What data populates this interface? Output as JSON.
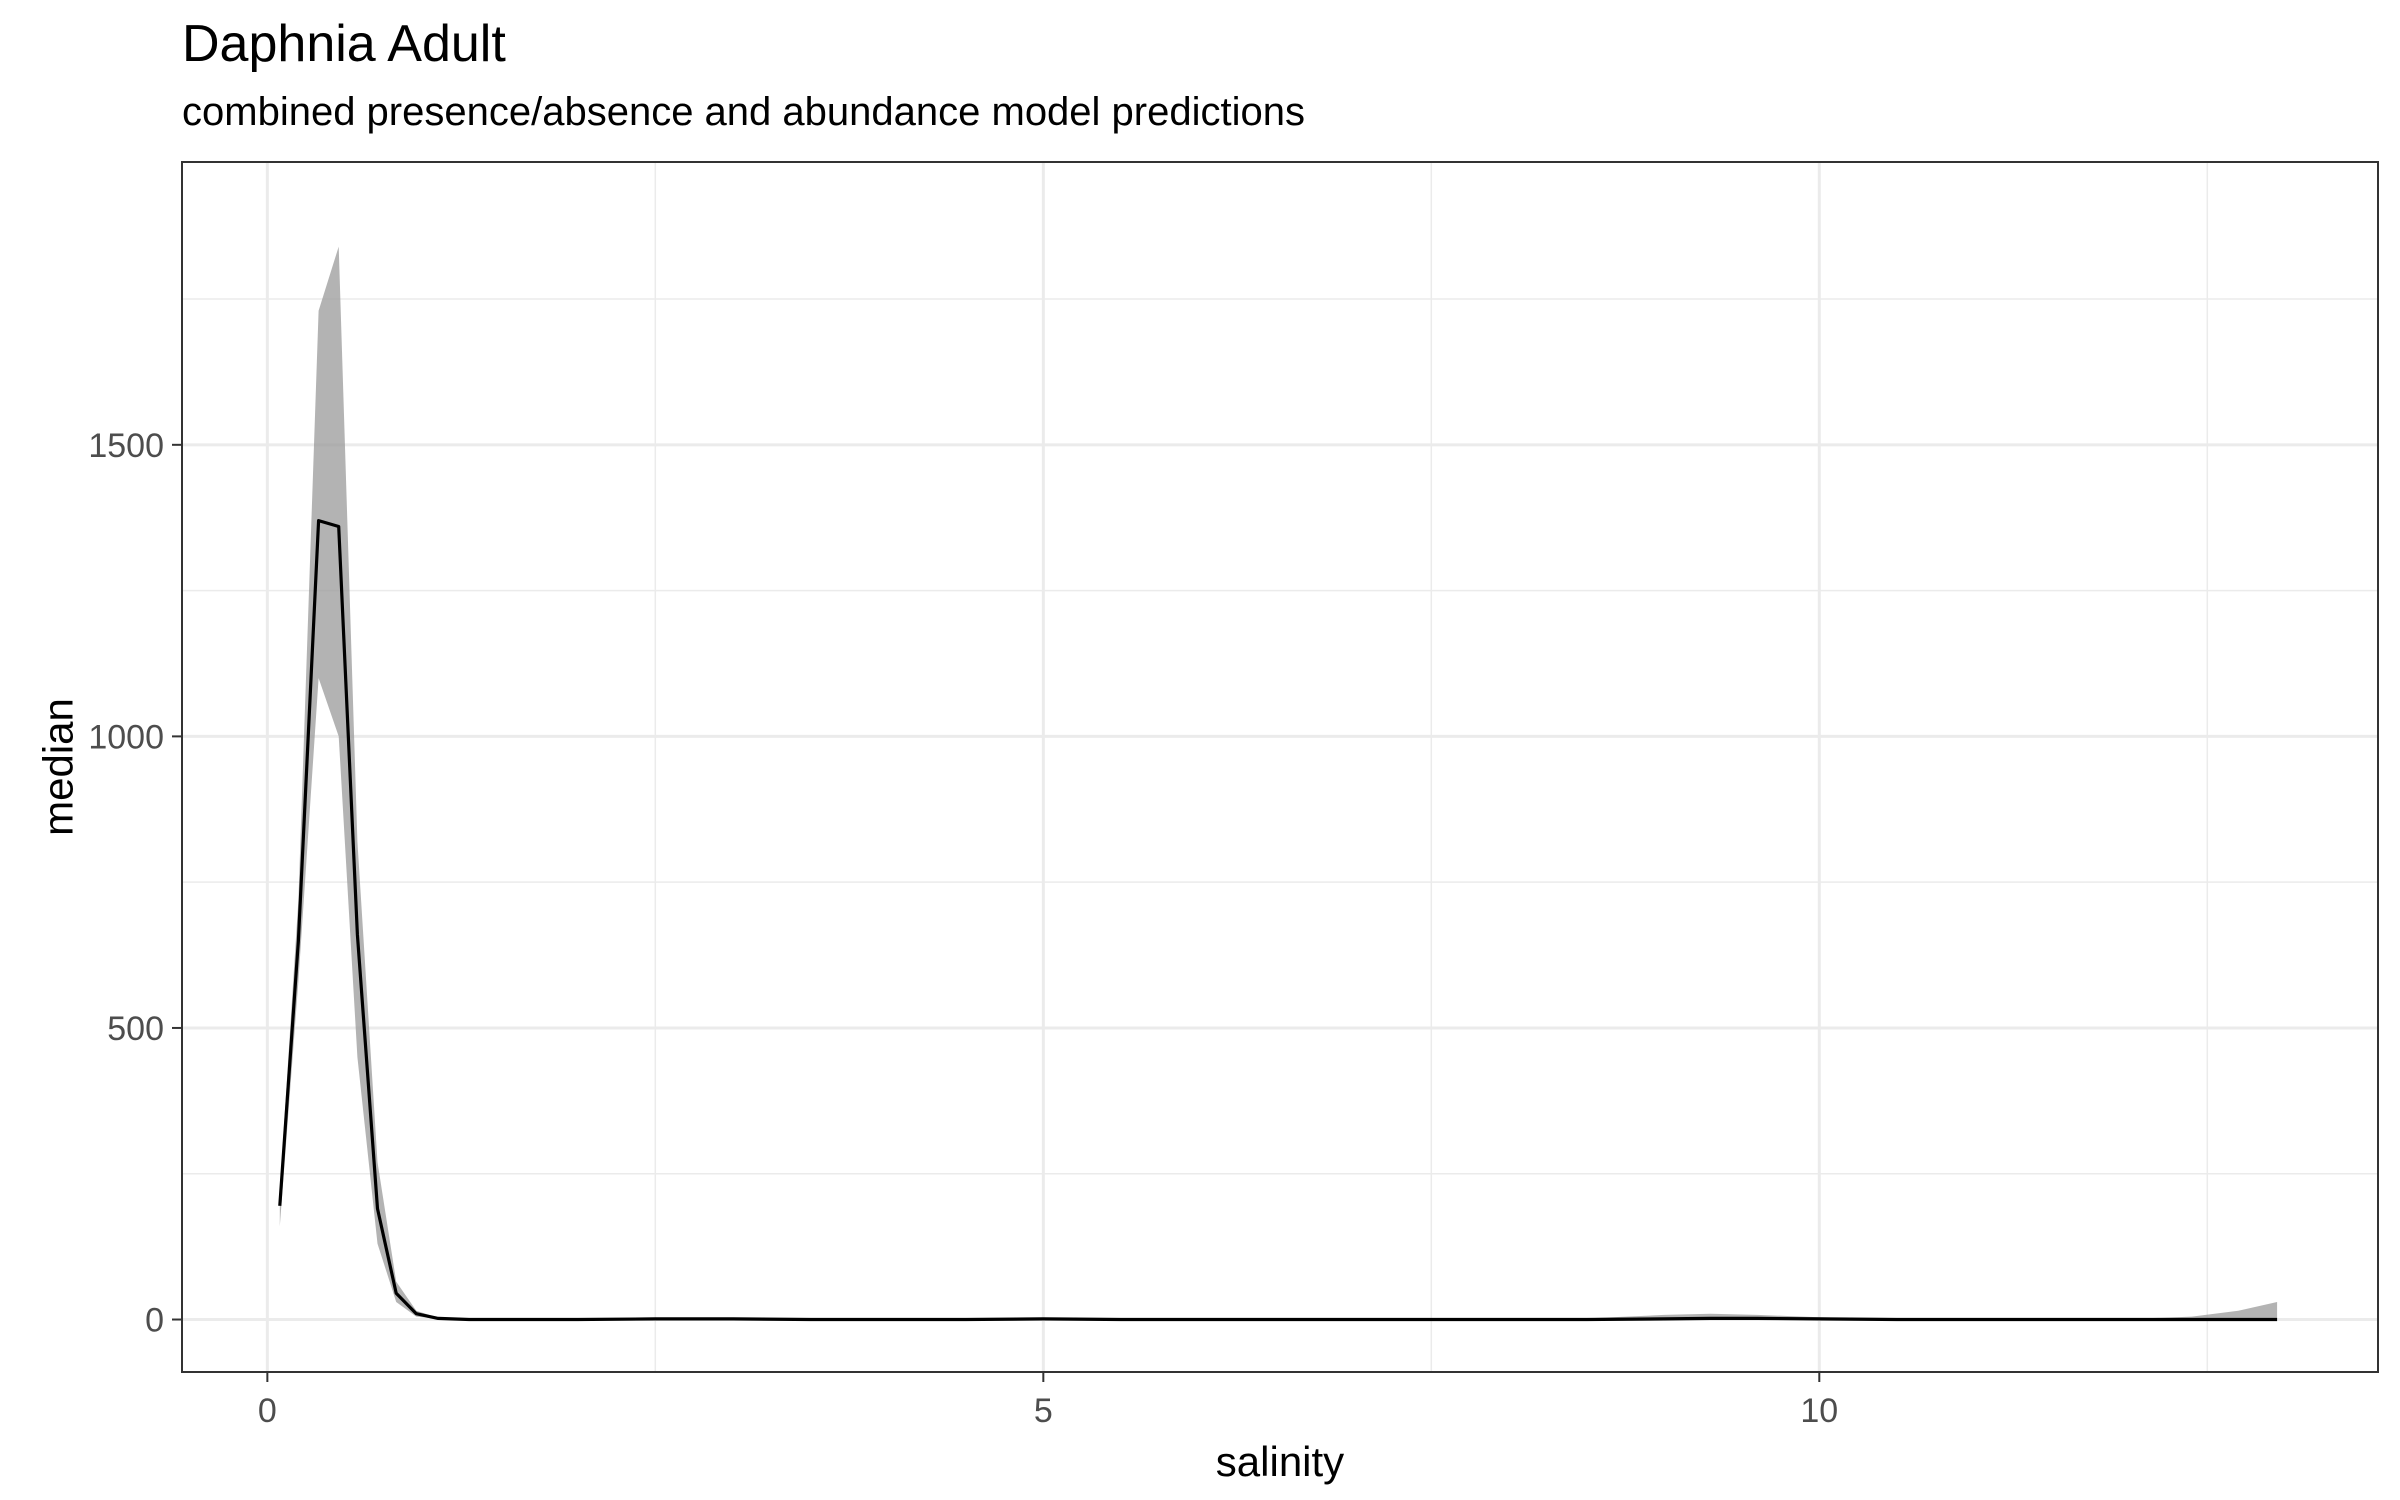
{
  "chart_data": {
    "type": "line",
    "title": "Daphnia Adult",
    "subtitle": "combined presence/absence and abundance model predictions",
    "xlabel": "salinity",
    "ylabel": "median",
    "xlim": [
      -0.55,
      13.6
    ],
    "ylim": [
      -90,
      1985
    ],
    "x_ticks": [
      0,
      5,
      10
    ],
    "x_tick_labels": [
      "0",
      "5",
      "10"
    ],
    "y_ticks": [
      0,
      500,
      1000,
      1500
    ],
    "y_tick_labels": [
      "0",
      "500",
      "1000",
      "1500"
    ],
    "grid": true,
    "legend": "none",
    "series": [
      {
        "x": [
          0.08,
          0.2,
          0.33,
          0.46,
          0.58,
          0.71,
          0.83,
          0.96,
          1.1,
          1.3,
          1.6,
          2.0,
          2.5,
          3.0,
          3.5,
          4.0,
          4.5,
          5.0,
          5.5,
          6.0,
          6.5,
          7.0,
          7.5,
          8.0,
          8.5,
          9.0,
          9.3,
          9.6,
          10.0,
          10.5,
          11.0,
          11.5,
          12.0,
          12.4,
          12.7,
          12.95
        ],
        "y": [
          195,
          650,
          1370,
          1360,
          660,
          190,
          45,
          10,
          2,
          0,
          0,
          0,
          1,
          1,
          0,
          0,
          0,
          1,
          0,
          0,
          0,
          0,
          0,
          0,
          0,
          1,
          2,
          2,
          1,
          0,
          0,
          0,
          0,
          0,
          0,
          0
        ],
        "lower": [
          160,
          580,
          1100,
          1000,
          450,
          130,
          30,
          5,
          1,
          0,
          0,
          0,
          0,
          0,
          0,
          0,
          0,
          0,
          0,
          0,
          0,
          0,
          0,
          0,
          0,
          0,
          0,
          0,
          0,
          0,
          0,
          0,
          0,
          0,
          0,
          0
        ],
        "upper": [
          220,
          720,
          1730,
          1840,
          820,
          270,
          65,
          15,
          3,
          1,
          1,
          1,
          2,
          2,
          1,
          1,
          1,
          2,
          1,
          1,
          1,
          1,
          1,
          1,
          2,
          8,
          10,
          8,
          4,
          1,
          1,
          1,
          1,
          5,
          15,
          30
        ]
      }
    ],
    "colors": {
      "line": "#000000",
      "ribbon": "#999999",
      "grid": "#ebebeb",
      "panel_border": "#333333"
    }
  }
}
